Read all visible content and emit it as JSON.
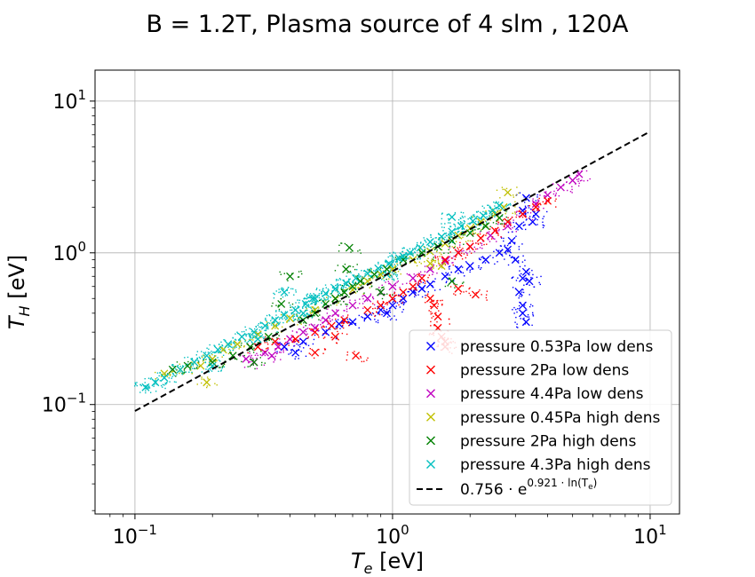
{
  "chart_data": {
    "type": "scatter",
    "title": "B = 1.2T, Plasma source of 4 slm , 120A",
    "xlabel": {
      "main": "T",
      "sub": "e",
      "unit": " [eV]"
    },
    "ylabel": {
      "main": "T",
      "sub": "H",
      "unit": " [eV]"
    },
    "xscale": "log",
    "yscale": "log",
    "xlim": [
      0.07,
      13
    ],
    "ylim": [
      0.019,
      16
    ],
    "grid": true,
    "legend_position": "lower-right",
    "x_ticks": [
      {
        "value": 0.1,
        "base": "10",
        "exp": "−1"
      },
      {
        "value": 1,
        "base": "10",
        "exp": "0"
      },
      {
        "value": 10,
        "base": "10",
        "exp": "1"
      }
    ],
    "y_ticks": [
      {
        "value": 0.1,
        "base": "10",
        "exp": "−1"
      },
      {
        "value": 1,
        "base": "10",
        "exp": "0"
      },
      {
        "value": 10,
        "base": "10",
        "exp": "1"
      }
    ],
    "series": [
      {
        "name": "pressure 0.53Pa low dens",
        "color": "#0000ff",
        "marker": "x",
        "points": [
          [
            0.38,
            0.24
          ],
          [
            0.45,
            0.26
          ],
          [
            0.55,
            0.3
          ],
          [
            0.62,
            0.34
          ],
          [
            0.7,
            0.35
          ],
          [
            0.8,
            0.38
          ],
          [
            0.9,
            0.42
          ],
          [
            1.0,
            0.45
          ],
          [
            1.1,
            0.5
          ],
          [
            1.2,
            0.55
          ],
          [
            1.4,
            0.62
          ],
          [
            1.6,
            0.7
          ],
          [
            1.8,
            0.78
          ],
          [
            2.0,
            0.82
          ],
          [
            2.3,
            0.9
          ],
          [
            2.6,
            1.0
          ],
          [
            2.9,
            1.2
          ],
          [
            3.1,
            1.5
          ],
          [
            3.2,
            1.9
          ],
          [
            3.3,
            2.3
          ],
          [
            3.3,
            0.75
          ],
          [
            3.2,
            0.68
          ],
          [
            3.1,
            0.55
          ],
          [
            3.2,
            0.45
          ],
          [
            3.2,
            0.4
          ],
          [
            3.3,
            0.35
          ],
          [
            3.4,
            0.65
          ],
          [
            3.0,
            0.9
          ],
          [
            2.8,
            1.05
          ],
          [
            3.5,
            1.6
          ],
          [
            3.6,
            1.8
          ],
          [
            1.3,
            0.58
          ],
          [
            0.95,
            0.4
          ],
          [
            0.42,
            0.22
          ]
        ]
      },
      {
        "name": "pressure 2Pa low dens",
        "color": "#ff0000",
        "marker": "x",
        "points": [
          [
            0.3,
            0.24
          ],
          [
            0.35,
            0.26
          ],
          [
            0.42,
            0.27
          ],
          [
            0.5,
            0.3
          ],
          [
            0.58,
            0.33
          ],
          [
            0.65,
            0.36
          ],
          [
            0.72,
            0.21
          ],
          [
            0.8,
            0.42
          ],
          [
            0.9,
            0.45
          ],
          [
            1.0,
            0.5
          ],
          [
            1.1,
            0.55
          ],
          [
            1.2,
            0.6
          ],
          [
            1.3,
            0.68
          ],
          [
            1.4,
            0.5
          ],
          [
            1.5,
            0.38
          ],
          [
            1.5,
            0.32
          ],
          [
            1.55,
            0.28
          ],
          [
            1.6,
            0.26
          ],
          [
            1.6,
            0.24
          ],
          [
            1.45,
            0.45
          ],
          [
            1.6,
            0.9
          ],
          [
            1.8,
            1.0
          ],
          [
            2.0,
            1.1
          ],
          [
            2.1,
            0.53
          ],
          [
            1.8,
            0.58
          ],
          [
            2.2,
            1.25
          ],
          [
            2.5,
            1.4
          ],
          [
            2.8,
            1.6
          ],
          [
            3.2,
            1.8
          ],
          [
            3.6,
            2.0
          ],
          [
            4.0,
            2.2
          ],
          [
            0.5,
            0.22
          ],
          [
            0.6,
            0.28
          ]
        ]
      },
      {
        "name": "pressure 4.4Pa low dens",
        "color": "#c000c0",
        "marker": "x",
        "points": [
          [
            0.27,
            0.2
          ],
          [
            0.32,
            0.22
          ],
          [
            0.36,
            0.24
          ],
          [
            0.4,
            0.27
          ],
          [
            0.45,
            0.3
          ],
          [
            0.5,
            0.32
          ],
          [
            0.55,
            0.36
          ],
          [
            0.6,
            0.4
          ],
          [
            0.7,
            0.45
          ],
          [
            0.8,
            0.5
          ],
          [
            0.9,
            0.55
          ],
          [
            1.0,
            0.6
          ],
          [
            1.2,
            0.68
          ],
          [
            1.4,
            0.78
          ],
          [
            1.6,
            0.88
          ],
          [
            1.8,
            1.0
          ],
          [
            2.0,
            1.1
          ],
          [
            2.4,
            1.3
          ],
          [
            2.8,
            1.5
          ],
          [
            3.2,
            1.8
          ],
          [
            3.6,
            2.1
          ],
          [
            4.0,
            2.4
          ],
          [
            4.5,
            2.7
          ],
          [
            5.0,
            3.0
          ],
          [
            5.3,
            3.3
          ],
          [
            0.29,
            0.19
          ],
          [
            0.34,
            0.21
          ]
        ]
      },
      {
        "name": "pressure 0.45Pa high dens",
        "color": "#c0c000",
        "marker": "x",
        "points": [
          [
            0.13,
            0.16
          ],
          [
            0.15,
            0.17
          ],
          [
            0.18,
            0.18
          ],
          [
            0.2,
            0.2
          ],
          [
            0.22,
            0.23
          ],
          [
            0.25,
            0.25
          ],
          [
            0.3,
            0.29
          ],
          [
            0.35,
            0.33
          ],
          [
            0.4,
            0.37
          ],
          [
            0.5,
            0.42
          ],
          [
            0.6,
            0.5
          ],
          [
            0.7,
            0.57
          ],
          [
            0.8,
            0.65
          ],
          [
            0.9,
            0.72
          ],
          [
            1.0,
            0.78
          ],
          [
            1.2,
            0.9
          ],
          [
            1.4,
            1.02
          ],
          [
            1.6,
            1.15
          ],
          [
            1.8,
            1.3
          ],
          [
            2.0,
            1.45
          ],
          [
            2.2,
            1.6
          ],
          [
            2.5,
            1.8
          ],
          [
            2.7,
            2.0
          ],
          [
            2.8,
            2.5
          ],
          [
            1.4,
            0.85
          ],
          [
            1.55,
            0.82
          ],
          [
            0.19,
            0.14
          ]
        ]
      },
      {
        "name": "pressure 2Pa high dens",
        "color": "#008000",
        "marker": "x",
        "points": [
          [
            0.14,
            0.17
          ],
          [
            0.16,
            0.18
          ],
          [
            0.2,
            0.19
          ],
          [
            0.24,
            0.21
          ],
          [
            0.28,
            0.24
          ],
          [
            0.33,
            0.28
          ],
          [
            0.37,
            0.46
          ],
          [
            0.4,
            0.7
          ],
          [
            0.45,
            0.36
          ],
          [
            0.5,
            0.4
          ],
          [
            0.55,
            0.46
          ],
          [
            0.6,
            0.5
          ],
          [
            0.65,
            0.55
          ],
          [
            0.68,
            1.08
          ],
          [
            0.7,
            0.6
          ],
          [
            0.66,
            0.78
          ],
          [
            0.75,
            0.65
          ],
          [
            0.85,
            0.72
          ],
          [
            0.95,
            0.78
          ],
          [
            1.1,
            0.9
          ],
          [
            1.3,
            1.0
          ],
          [
            1.5,
            1.1
          ],
          [
            1.7,
            1.2
          ],
          [
            2.0,
            1.35
          ],
          [
            2.3,
            1.5
          ],
          [
            2.6,
            1.7
          ],
          [
            1.7,
            0.65
          ],
          [
            0.9,
            0.55
          ],
          [
            0.29,
            0.19
          ]
        ]
      },
      {
        "name": "pressure 4.3Pa high dens",
        "color": "#00bfbf",
        "marker": "x",
        "points": [
          [
            0.11,
            0.13
          ],
          [
            0.12,
            0.14
          ],
          [
            0.13,
            0.15
          ],
          [
            0.15,
            0.17
          ],
          [
            0.17,
            0.19
          ],
          [
            0.19,
            0.21
          ],
          [
            0.21,
            0.23
          ],
          [
            0.23,
            0.25
          ],
          [
            0.26,
            0.28
          ],
          [
            0.29,
            0.3
          ],
          [
            0.32,
            0.33
          ],
          [
            0.35,
            0.36
          ],
          [
            0.38,
            0.39
          ],
          [
            0.42,
            0.42
          ],
          [
            0.46,
            0.46
          ],
          [
            0.5,
            0.5
          ],
          [
            0.55,
            0.54
          ],
          [
            0.6,
            0.58
          ],
          [
            0.66,
            0.63
          ],
          [
            0.72,
            0.68
          ],
          [
            0.8,
            0.73
          ],
          [
            0.88,
            0.79
          ],
          [
            0.97,
            0.85
          ],
          [
            1.06,
            0.92
          ],
          [
            1.17,
            1.0
          ],
          [
            1.28,
            1.08
          ],
          [
            1.4,
            1.18
          ],
          [
            1.55,
            1.28
          ],
          [
            1.7,
            1.38
          ],
          [
            1.85,
            1.5
          ],
          [
            2.05,
            1.62
          ],
          [
            2.25,
            1.76
          ],
          [
            2.45,
            1.9
          ],
          [
            2.6,
            2.05
          ],
          [
            0.38,
            0.55
          ],
          [
            0.49,
            0.5
          ],
          [
            0.95,
            0.72
          ],
          [
            1.7,
            1.72
          ],
          [
            1.1,
            0.95
          ],
          [
            0.3,
            0.27
          ],
          [
            0.45,
            0.4
          ],
          [
            0.2,
            0.18
          ]
        ]
      }
    ],
    "fit_line": {
      "label": "0.756·e^(0.921·ln(Te))",
      "label_base": "0.756 · e",
      "label_exp": "0.921 · ln(T",
      "label_exp_sub": "e",
      "label_exp_close": ")",
      "coef": 0.756,
      "exponent": 0.921,
      "x_range": [
        0.1,
        10
      ],
      "color": "#000000"
    }
  }
}
